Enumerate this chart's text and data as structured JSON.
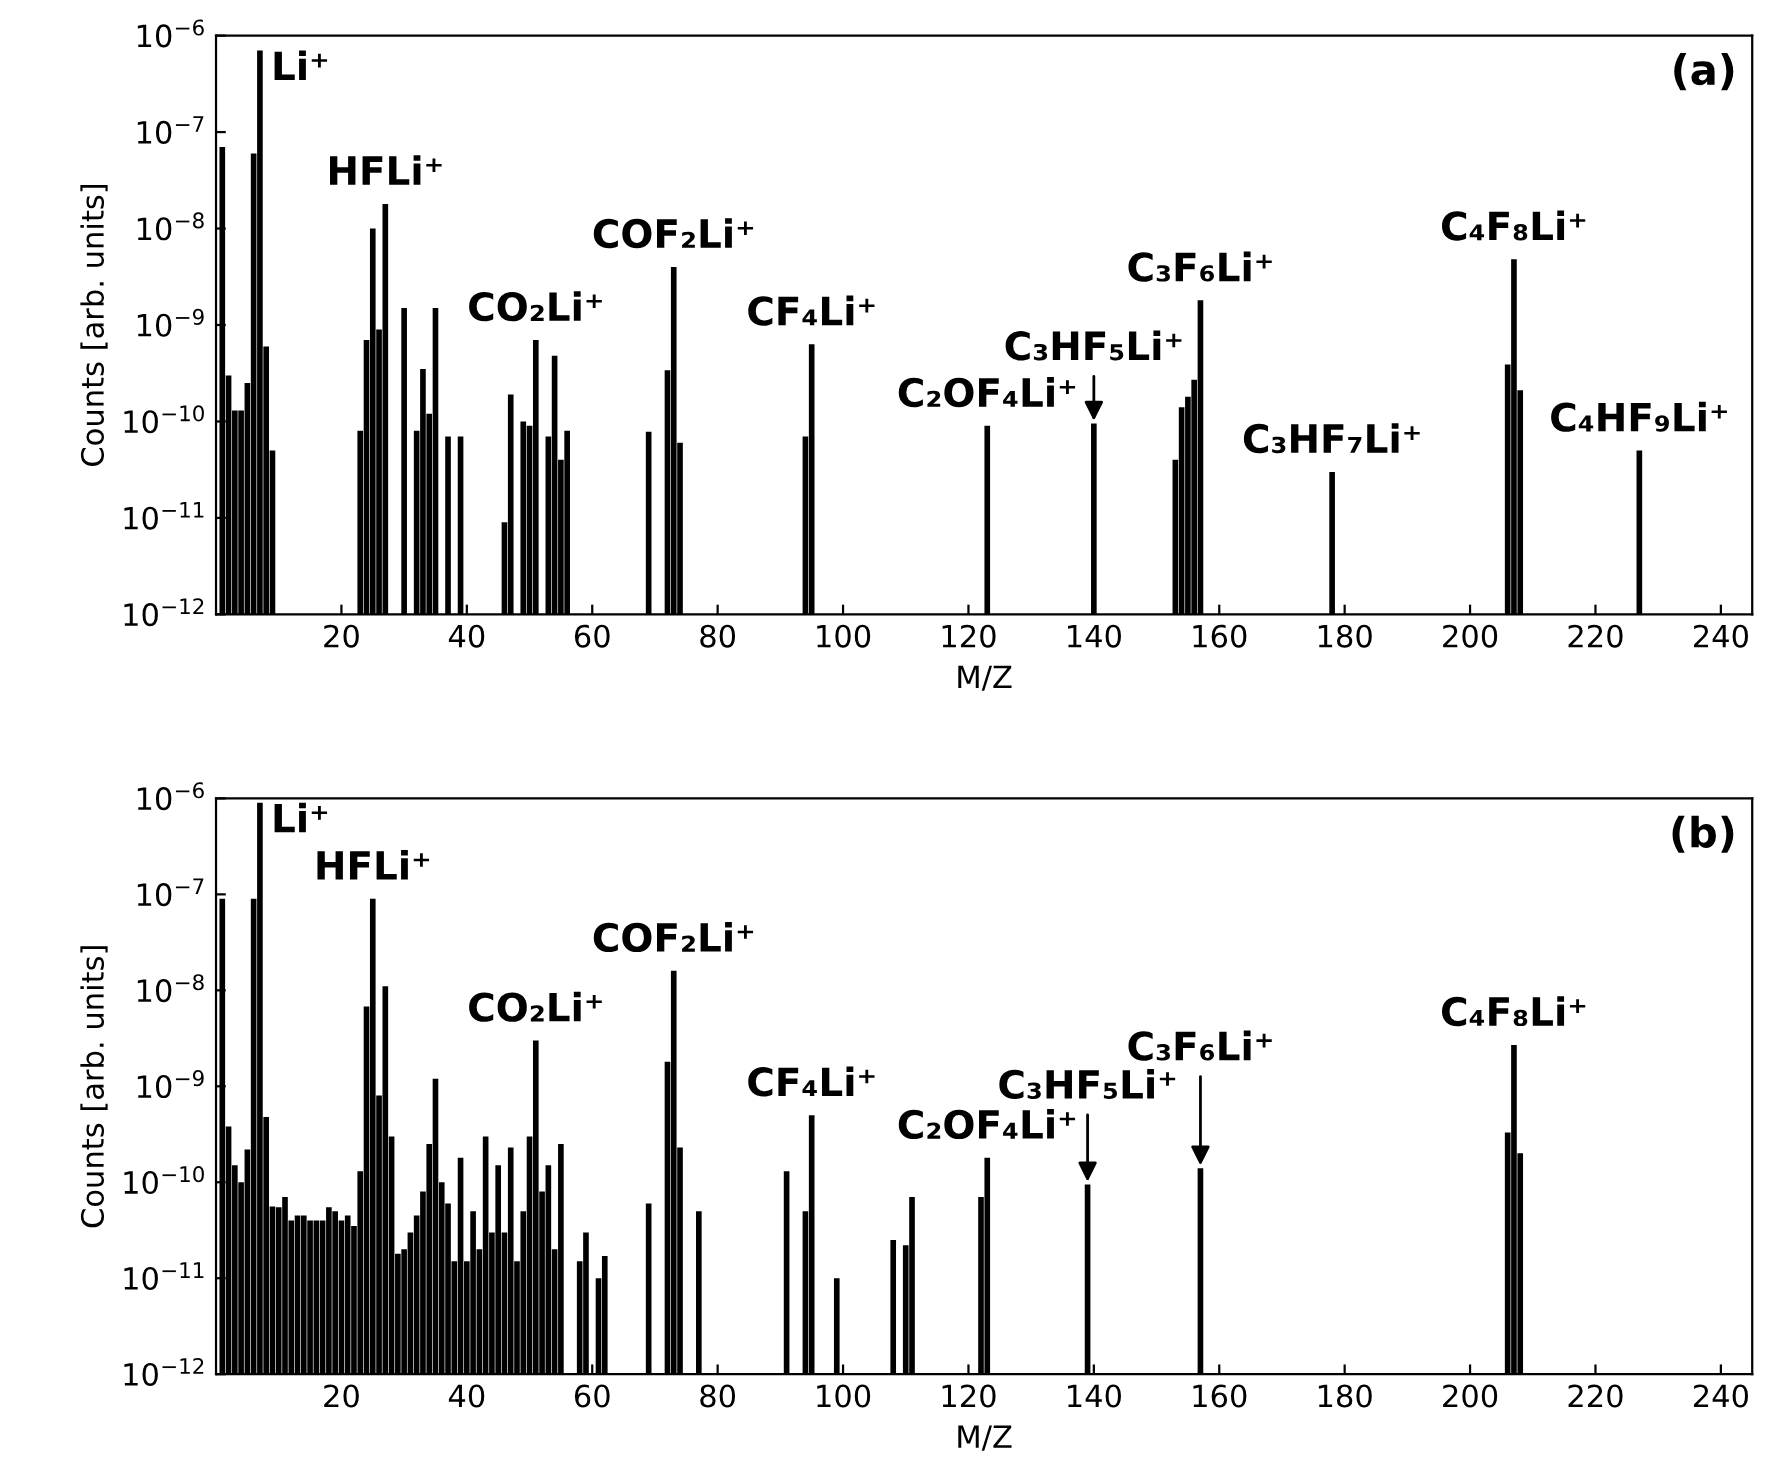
{
  "chart_data": [
    {
      "type": "bar",
      "xlabel": "M/Z",
      "ylabel": "Counts [arb. units]",
      "log": true,
      "grid": false,
      "xlim": [
        0,
        245
      ],
      "xticks": [
        20,
        40,
        60,
        80,
        100,
        120,
        140,
        160,
        180,
        200,
        220,
        240
      ],
      "ylim": [
        1e-12,
        1e-06
      ],
      "yticks": [
        {
          "value": 1e-12,
          "label": "10$^{−12}$"
        },
        {
          "value": 1e-11,
          "label": "10$^{−11}$"
        },
        {
          "value": 1e-10,
          "label": "10$^{−10}$"
        },
        {
          "value": 1e-09,
          "label": "10$^{−9}$"
        },
        {
          "value": 1e-08,
          "label": "10$^{−8}$"
        },
        {
          "value": 1e-07,
          "label": "10$^{−7}$"
        },
        {
          "value": 1e-06,
          "label": "10$^{−6}$"
        }
      ],
      "x": [
        1,
        2,
        3,
        4,
        5,
        6,
        7,
        8,
        9,
        23,
        24,
        25,
        26,
        27,
        30,
        32,
        33,
        34,
        35,
        37,
        39,
        46,
        47,
        49,
        50,
        51,
        53,
        54,
        55,
        56,
        69,
        72,
        73,
        74,
        94,
        95,
        123,
        140,
        153,
        154,
        155,
        156,
        157,
        178,
        206,
        207,
        208,
        227
      ],
      "values": [
        7e-08,
        3e-10,
        1.3e-10,
        1.3e-10,
        2.5e-10,
        6e-08,
        7e-07,
        6e-10,
        5e-11,
        8e-11,
        7e-10,
        1e-08,
        9e-10,
        1.8e-08,
        1.5e-09,
        8e-11,
        3.5e-10,
        1.2e-10,
        1.5e-09,
        7e-11,
        7e-11,
        9e-12,
        1.9e-10,
        1e-10,
        9e-11,
        7e-10,
        7e-11,
        4.8e-10,
        4e-11,
        8e-11,
        7.8e-11,
        3.4e-10,
        4e-09,
        6e-11,
        7e-11,
        6.3e-10,
        9e-11,
        9.5e-11,
        4e-11,
        1.4e-10,
        1.8e-10,
        2.7e-10,
        1.8e-09,
        3e-11,
        3.9e-10,
        4.8e-09,
        2.1e-10,
        5e-11
      ],
      "color": "#000000",
      "annotations": [
        "(a)",
        {
          "text": "Li⁺",
          "x": 7,
          "y": 7e-07
        },
        {
          "text": "HFLi⁺",
          "x": 27,
          "y": 1.8e-08
        },
        {
          "text": "CO₂Li⁺",
          "x": 51,
          "y": 7e-10
        },
        {
          "text": "COF₂Li⁺",
          "x": 73,
          "y": 4e-09
        },
        {
          "text": "CF₄Li⁺",
          "x": 95,
          "y": 6.3e-10
        },
        {
          "text": "C₂OF₄Li⁺",
          "x": 123,
          "y": 9e-11
        },
        {
          "text": "C₃HF₅Li⁺",
          "x": 140,
          "y": 9.5e-11
        },
        {
          "text": "C₃F₆Li⁺",
          "x": 157,
          "y": 1.8e-09
        },
        {
          "text": "C₃HF₇Li⁺",
          "x": 178,
          "y": 3e-11
        },
        {
          "text": "C₄F₈Li⁺",
          "x": 207,
          "y": 4.8e-09
        },
        {
          "text": "C₄HF₉Li⁺",
          "x": 227,
          "y": 5e-11
        }
      ]
    },
    {
      "type": "bar",
      "xlabel": "M/Z",
      "ylabel": "Counts [arb. units]",
      "log": true,
      "grid": false,
      "xlim": [
        0,
        245
      ],
      "xticks": [
        20,
        40,
        60,
        80,
        100,
        120,
        140,
        160,
        180,
        200,
        220,
        240
      ],
      "ylim": [
        1e-12,
        1e-06
      ],
      "yticks": [
        {
          "value": 1e-12,
          "label": "10$^{−12}$"
        },
        {
          "value": 1e-11,
          "label": "10$^{−11}$"
        },
        {
          "value": 1e-10,
          "label": "10$^{−10}$"
        },
        {
          "value": 1e-09,
          "label": "10$^{−9}$"
        },
        {
          "value": 1e-08,
          "label": "10$^{−8}$"
        },
        {
          "value": 1e-07,
          "label": "10$^{−7}$"
        },
        {
          "value": 1e-06,
          "label": "10$^{−6}$"
        }
      ],
      "x": [
        1,
        2,
        3,
        4,
        5,
        6,
        7,
        8,
        9,
        10,
        11,
        12,
        13,
        14,
        15,
        16,
        17,
        18,
        19,
        20,
        21,
        22,
        23,
        24,
        25,
        26,
        27,
        28,
        29,
        30,
        31,
        32,
        33,
        34,
        35,
        36,
        37,
        38,
        39,
        40,
        41,
        42,
        43,
        44,
        45,
        46,
        47,
        48,
        49,
        50,
        51,
        52,
        53,
        54,
        55,
        58,
        59,
        61,
        62,
        69,
        72,
        73,
        74,
        77,
        91,
        94,
        95,
        99,
        108,
        110,
        111,
        122,
        123,
        139,
        157,
        206,
        207,
        208
      ],
      "values": [
        9e-08,
        3.8e-10,
        1.5e-10,
        1e-10,
        2.2e-10,
        9e-08,
        9e-07,
        4.8e-10,
        5.6e-11,
        5.5e-11,
        7e-11,
        4e-11,
        4.5e-11,
        4.5e-11,
        4e-11,
        4e-11,
        4e-11,
        5.5e-11,
        5e-11,
        4e-11,
        4.5e-11,
        3.5e-11,
        1.3e-10,
        6.8e-09,
        9e-08,
        8e-10,
        1.1e-08,
        3e-10,
        1.8e-11,
        2e-11,
        3e-11,
        4.5e-11,
        8e-11,
        2.5e-10,
        1.2e-09,
        1e-10,
        6e-11,
        1.5e-11,
        1.8e-10,
        1.5e-11,
        5e-11,
        2e-11,
        3e-10,
        3e-11,
        1.5e-10,
        3e-11,
        2.3e-10,
        1.5e-11,
        5e-11,
        3e-10,
        3e-09,
        8e-11,
        1.5e-10,
        2e-11,
        2.5e-10,
        1.5e-11,
        3e-11,
        1e-11,
        1.7e-11,
        6e-11,
        1.8e-09,
        1.6e-08,
        2.3e-10,
        5e-11,
        1.3e-10,
        5e-11,
        5e-10,
        1e-11,
        2.5e-11,
        2.2e-11,
        7e-11,
        7e-11,
        1.8e-10,
        9.5e-11,
        1.4e-10,
        3.3e-10,
        2.7e-09,
        2e-10
      ],
      "color": "#000000",
      "annotations": [
        "(b)",
        {
          "text": "Li⁺",
          "x": 7,
          "y": 9e-07
        },
        {
          "text": "HFLi⁺",
          "x": 25,
          "y": 9e-08
        },
        {
          "text": "CO₂Li⁺",
          "x": 51,
          "y": 3e-09
        },
        {
          "text": "COF₂Li⁺",
          "x": 73,
          "y": 1.6e-08
        },
        {
          "text": "CF₄Li⁺",
          "x": 95,
          "y": 5e-10
        },
        {
          "text": "C₂OF₄Li⁺",
          "x": 123,
          "y": 1.8e-10
        },
        {
          "text": "C₃HF₅Li⁺",
          "x": 139,
          "y": 9.5e-11
        },
        {
          "text": "C₃F₆Li⁺",
          "x": 157,
          "y": 1.4e-10
        },
        {
          "text": "C₄F₈Li⁺",
          "x": 207,
          "y": 2.7e-09
        }
      ]
    }
  ]
}
